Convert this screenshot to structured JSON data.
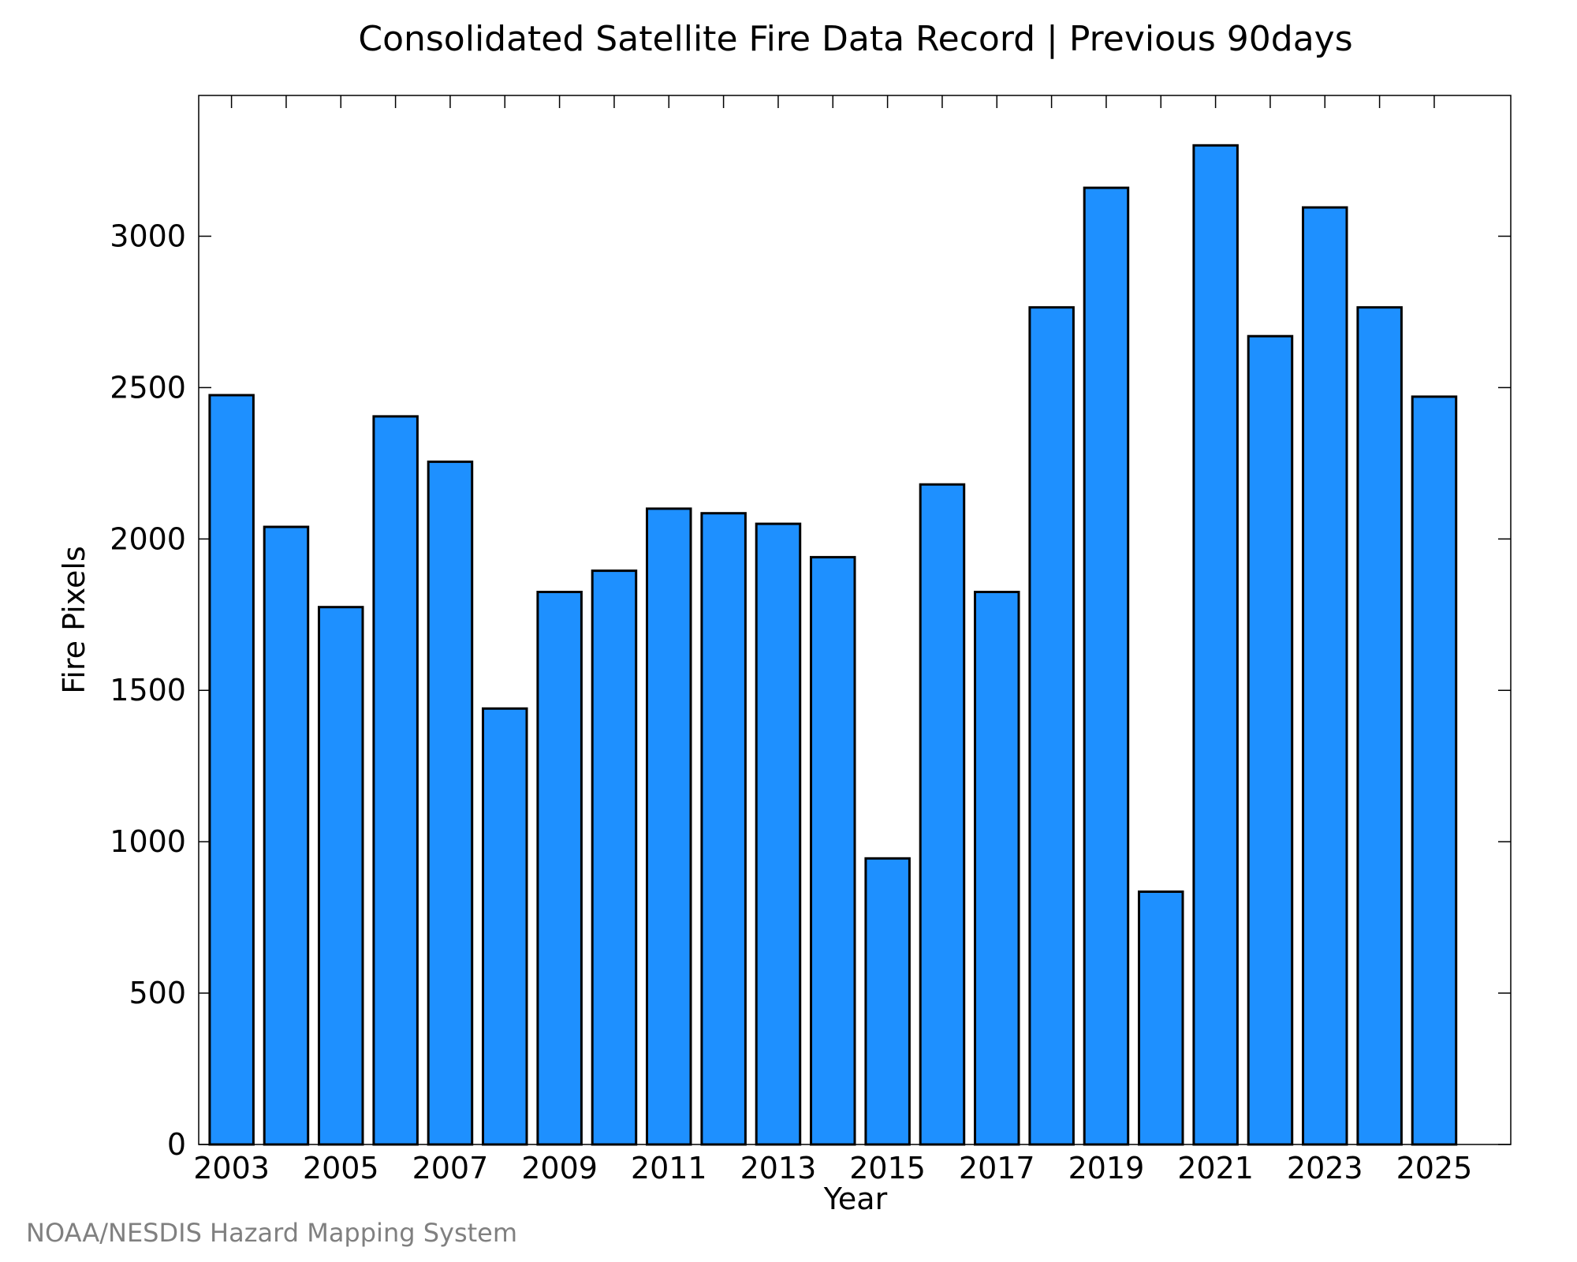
{
  "chart_data": {
    "type": "bar",
    "title": "Consolidated Satellite Fire Data Record | Previous 90days",
    "xlabel": "Year",
    "ylabel": "Fire Pixels",
    "categories": [
      "2003",
      "2004",
      "2005",
      "2006",
      "2007",
      "2008",
      "2009",
      "2010",
      "2011",
      "2012",
      "2013",
      "2014",
      "2015",
      "2016",
      "2017",
      "2018",
      "2019",
      "2020",
      "2021",
      "2022",
      "2023",
      "2024",
      "2025"
    ],
    "values": [
      2475,
      2040,
      1775,
      2405,
      2255,
      1440,
      1825,
      1895,
      2100,
      2085,
      2050,
      1940,
      945,
      2180,
      1825,
      2765,
      3160,
      835,
      3300,
      2670,
      3095,
      2765,
      2470
    ],
    "x_tick_labels": [
      "2003",
      "2005",
      "2007",
      "2009",
      "2011",
      "2013",
      "2015",
      "2017",
      "2019",
      "2021",
      "2023",
      "2025"
    ],
    "y_ticks": [
      0,
      500,
      1000,
      1500,
      2000,
      2500,
      3000
    ],
    "ylim": [
      0,
      3465
    ],
    "bar_color": "#1E90FF",
    "grid": false,
    "legend": "none"
  },
  "credit": "NOAA/NESDIS Hazard Mapping System"
}
